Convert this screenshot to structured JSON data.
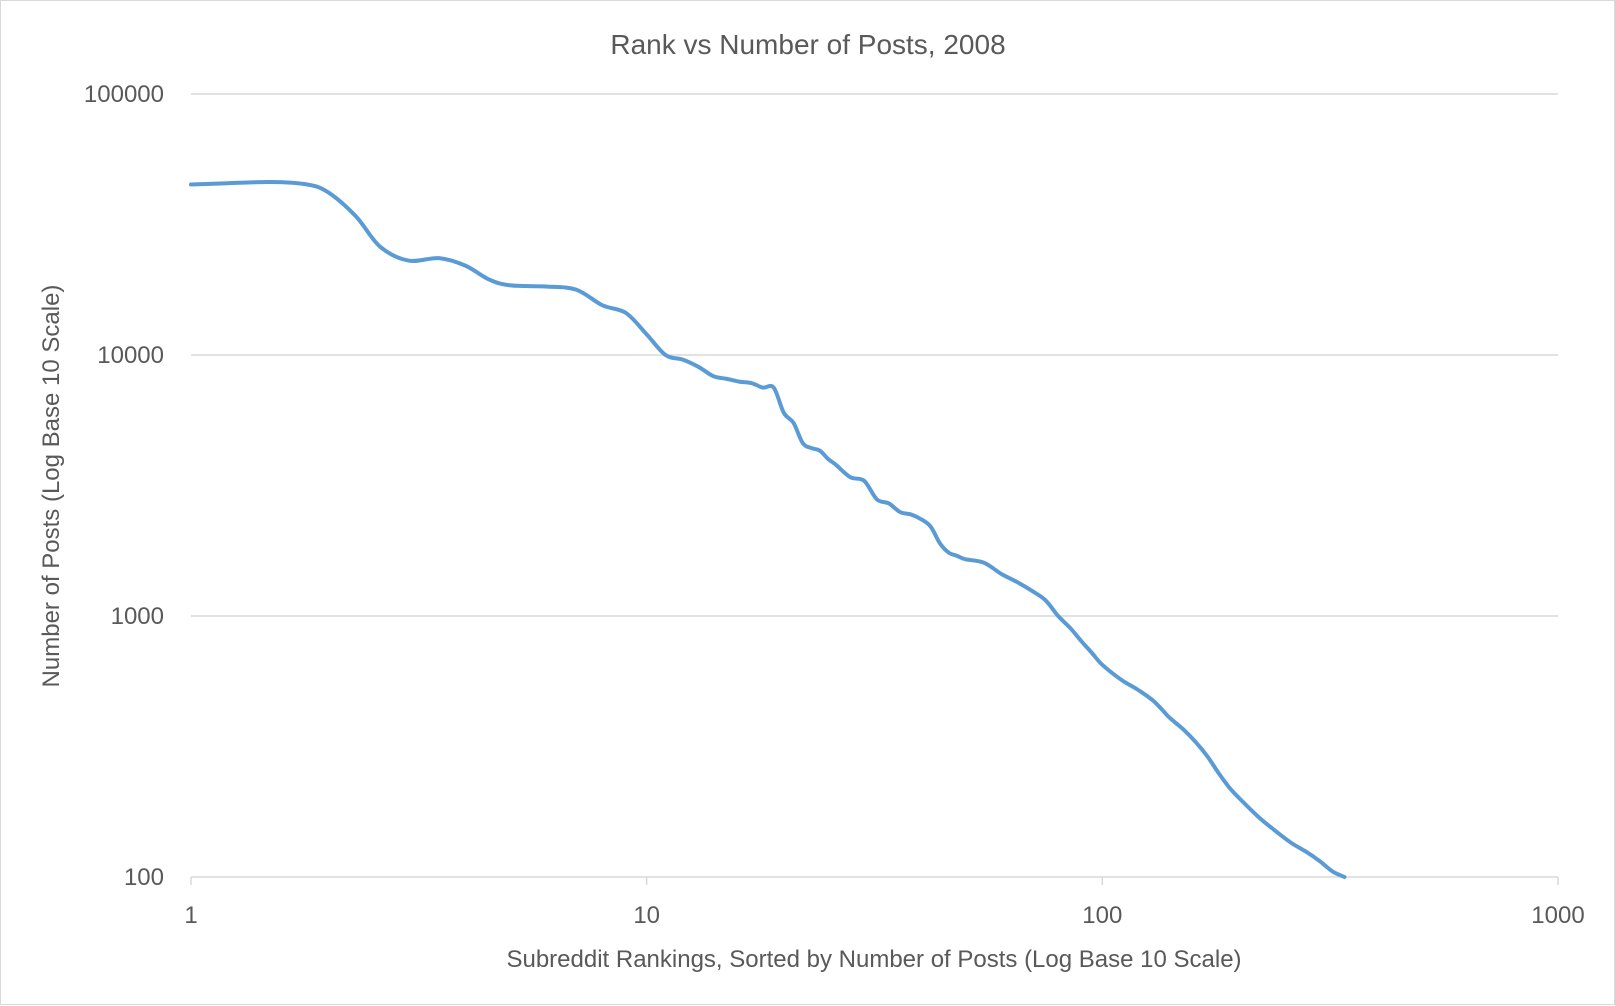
{
  "chart_data": {
    "type": "line",
    "title": "Rank vs Number of Posts, 2008",
    "xlabel": "Subreddit Rankings, Sorted by Number of Posts  (Log Base 10 Scale)",
    "ylabel": "Number of Posts (Log  Base 10 Scale)",
    "x_scale": "log10",
    "y_scale": "log10",
    "xlim": [
      1,
      1000
    ],
    "ylim": [
      100,
      100000
    ],
    "x_ticks": [
      "1",
      "10",
      "100",
      "1000"
    ],
    "y_ticks": [
      "100",
      "1000",
      "10000",
      "100000"
    ],
    "grid": "horizontal",
    "legend": "none",
    "line_color": "#5b9bd5",
    "series": [
      {
        "x": [
          1,
          1.2,
          1.5,
          1.8,
          2,
          2.3,
          2.6,
          3,
          3.5,
          4,
          4.5,
          5,
          6,
          7,
          8,
          9,
          10,
          11,
          12,
          13,
          14,
          15,
          16,
          17,
          18,
          19,
          20,
          21,
          22,
          23,
          24,
          25,
          26,
          28,
          30,
          32,
          34,
          36,
          38,
          40,
          42,
          44,
          46,
          48,
          50,
          55,
          60,
          65,
          70,
          75,
          80,
          85,
          90,
          95,
          100,
          110,
          120,
          130,
          140,
          150,
          160,
          170,
          180,
          190,
          200,
          220,
          240,
          260,
          280,
          300,
          320,
          340
        ],
        "values": [
          45000,
          45500,
          46000,
          45000,
          42000,
          34000,
          26000,
          23000,
          23500,
          22000,
          19500,
          18500,
          18300,
          17800,
          15500,
          14500,
          12000,
          10000,
          9600,
          9000,
          8300,
          8100,
          7900,
          7800,
          7500,
          7500,
          6000,
          5500,
          4600,
          4400,
          4300,
          4000,
          3800,
          3400,
          3300,
          2800,
          2700,
          2500,
          2450,
          2350,
          2200,
          1900,
          1750,
          1700,
          1650,
          1600,
          1450,
          1350,
          1250,
          1150,
          1000,
          900,
          800,
          720,
          650,
          570,
          520,
          470,
          410,
          370,
          330,
          290,
          250,
          220,
          200,
          170,
          150,
          135,
          125,
          115,
          105,
          100
        ]
      }
    ]
  }
}
